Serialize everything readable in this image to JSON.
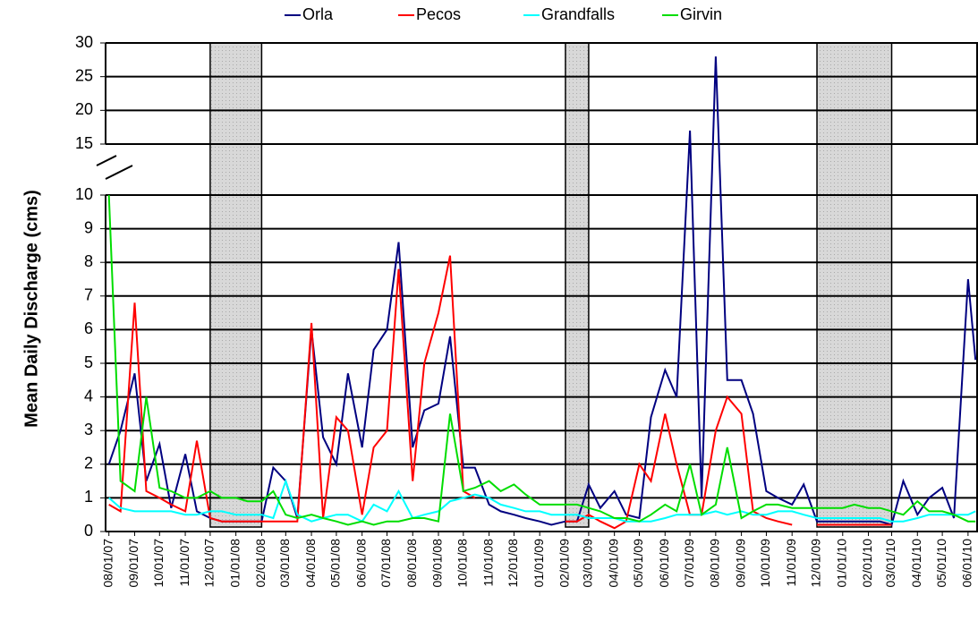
{
  "chart_data": {
    "type": "line",
    "y_label": "Mean Daily Discharge (cms)",
    "x": [
      "08/01/07",
      "08/15/07",
      "09/01/07",
      "09/15/07",
      "10/01/07",
      "10/15/07",
      "11/01/07",
      "11/15/07",
      "12/01/07",
      "12/15/07",
      "01/01/08",
      "01/15/08",
      "02/01/08",
      "02/15/08",
      "03/01/08",
      "03/15/08",
      "04/01/08",
      "04/15/08",
      "05/01/08",
      "05/15/08",
      "06/01/08",
      "06/15/08",
      "07/01/08",
      "07/15/08",
      "08/01/08",
      "08/15/08",
      "09/01/08",
      "09/15/08",
      "10/01/08",
      "10/15/08",
      "11/01/08",
      "11/15/08",
      "12/01/08",
      "12/15/08",
      "01/01/09",
      "01/15/09",
      "02/01/09",
      "02/15/09",
      "03/01/09",
      "03/15/09",
      "04/01/09",
      "04/15/09",
      "05/01/09",
      "05/15/09",
      "06/01/09",
      "06/15/09",
      "07/01/09",
      "07/15/09",
      "08/01/09",
      "08/15/09",
      "09/01/09",
      "09/15/09",
      "10/01/09",
      "10/15/09",
      "11/01/09",
      "11/15/09",
      "12/01/09",
      "12/15/09",
      "01/01/10",
      "01/15/10",
      "02/01/10",
      "02/15/10",
      "03/01/10",
      "03/15/10",
      "04/01/10",
      "04/15/10",
      "05/01/10",
      "05/15/10",
      "06/01/10",
      "06/10/10"
    ],
    "series": [
      {
        "name": "Orla",
        "color": "#000080",
        "values": [
          2.0,
          3.0,
          4.7,
          1.5,
          2.6,
          0.7,
          2.3,
          0.6,
          0.4,
          0.3,
          0.3,
          0.3,
          0.3,
          1.9,
          1.5,
          0.4,
          6.0,
          2.8,
          2.0,
          4.7,
          2.5,
          5.4,
          6.0,
          8.6,
          2.5,
          3.6,
          3.8,
          5.8,
          1.9,
          1.9,
          0.8,
          0.6,
          0.5,
          0.4,
          0.3,
          0.2,
          0.3,
          0.3,
          1.4,
          0.7,
          1.2,
          0.5,
          0.4,
          3.4,
          4.8,
          4.0,
          17,
          1.0,
          28,
          4.5,
          4.5,
          3.5,
          1.2,
          1.0,
          0.8,
          1.4,
          0.3,
          0.3,
          0.3,
          0.3,
          0.3,
          0.3,
          0.2,
          1.5,
          0.5,
          1.0,
          1.3,
          0.4,
          7.5,
          5.1
        ]
      },
      {
        "name": "Pecos",
        "color": "#ff0000",
        "values": [
          0.8,
          0.6,
          6.8,
          1.2,
          1.0,
          0.8,
          0.6,
          2.7,
          0.4,
          0.3,
          0.3,
          0.3,
          0.3,
          0.3,
          0.3,
          0.3,
          6.2,
          0.4,
          3.4,
          3.0,
          0.5,
          2.5,
          3.0,
          7.8,
          1.5,
          5.0,
          6.5,
          8.2,
          1.2,
          1.0,
          null,
          null,
          null,
          null,
          null,
          null,
          0.3,
          0.3,
          0.5,
          0.3,
          0.1,
          0.3,
          2.0,
          1.5,
          3.5,
          2.0,
          0.5,
          0.5,
          3.0,
          4.0,
          3.5,
          0.6,
          0.4,
          0.3,
          0.2,
          null,
          0.2,
          0.2,
          0.2,
          0.2,
          0.2,
          0.2,
          0.2,
          null,
          null,
          null,
          null,
          null,
          null,
          null
        ]
      },
      {
        "name": "Grandfalls",
        "color": "#00ffff",
        "values": [
          1.0,
          0.7,
          0.6,
          0.6,
          0.6,
          0.6,
          0.5,
          0.5,
          0.6,
          0.6,
          0.5,
          0.5,
          0.5,
          0.4,
          1.5,
          0.5,
          0.3,
          0.4,
          0.5,
          0.5,
          0.3,
          0.8,
          0.6,
          1.2,
          0.4,
          0.5,
          0.6,
          0.9,
          1.0,
          1.1,
          1.0,
          0.8,
          0.7,
          0.6,
          0.6,
          0.5,
          0.5,
          0.5,
          0.4,
          0.4,
          0.4,
          0.3,
          0.3,
          0.3,
          0.4,
          0.5,
          0.5,
          0.5,
          0.6,
          0.5,
          0.6,
          0.5,
          0.5,
          0.6,
          0.6,
          0.5,
          0.4,
          0.4,
          0.4,
          0.4,
          0.4,
          0.4,
          0.3,
          0.3,
          0.4,
          0.5,
          0.5,
          0.5,
          0.5,
          0.6
        ]
      },
      {
        "name": "Girvin",
        "color": "#00dd00",
        "values": [
          10,
          1.5,
          1.2,
          4.0,
          1.3,
          1.2,
          1.0,
          1.0,
          1.2,
          1.0,
          1.0,
          0.9,
          0.9,
          1.2,
          0.5,
          0.4,
          0.5,
          0.4,
          0.3,
          0.2,
          0.3,
          0.2,
          0.3,
          0.3,
          0.4,
          0.4,
          0.3,
          3.5,
          1.2,
          1.3,
          1.5,
          1.2,
          1.4,
          1.1,
          0.8,
          0.8,
          0.8,
          0.8,
          0.7,
          0.6,
          0.4,
          0.4,
          0.3,
          0.5,
          0.8,
          0.6,
          2.0,
          0.5,
          0.8,
          2.5,
          0.4,
          0.6,
          0.8,
          0.8,
          0.7,
          0.7,
          0.7,
          0.7,
          0.7,
          0.8,
          0.7,
          0.7,
          0.6,
          0.5,
          0.9,
          0.6,
          0.6,
          0.5,
          0.3,
          0.3
        ]
      }
    ],
    "xlim": [
      "07/28/07",
      "06/13/10"
    ],
    "xticks": [
      "08/01/07",
      "09/01/07",
      "10/01/07",
      "11/01/07",
      "12/01/07",
      "01/01/08",
      "02/01/08",
      "03/01/08",
      "04/01/08",
      "05/01/08",
      "06/01/08",
      "07/01/08",
      "08/01/08",
      "09/01/08",
      "10/01/08",
      "11/01/08",
      "12/01/08",
      "01/01/09",
      "02/01/09",
      "03/01/09",
      "04/01/09",
      "05/01/09",
      "06/01/09",
      "07/01/09",
      "08/01/09",
      "09/01/09",
      "10/01/09",
      "11/01/09",
      "12/01/09",
      "01/01/10",
      "02/01/10",
      "03/01/10",
      "04/01/10",
      "05/01/10",
      "06/01/10"
    ],
    "ylim": [
      0,
      30
    ],
    "axis_break": [
      10,
      15
    ],
    "yticks": [
      0,
      1,
      2,
      3,
      4,
      5,
      6,
      7,
      8,
      9,
      10,
      15,
      20,
      25,
      30
    ],
    "grid": true,
    "legend": "top",
    "shaded_periods": [
      [
        "12/01/07",
        "02/01/08"
      ],
      [
        "02/01/09",
        "03/01/09"
      ],
      [
        "12/01/09",
        "03/01/10"
      ]
    ]
  }
}
